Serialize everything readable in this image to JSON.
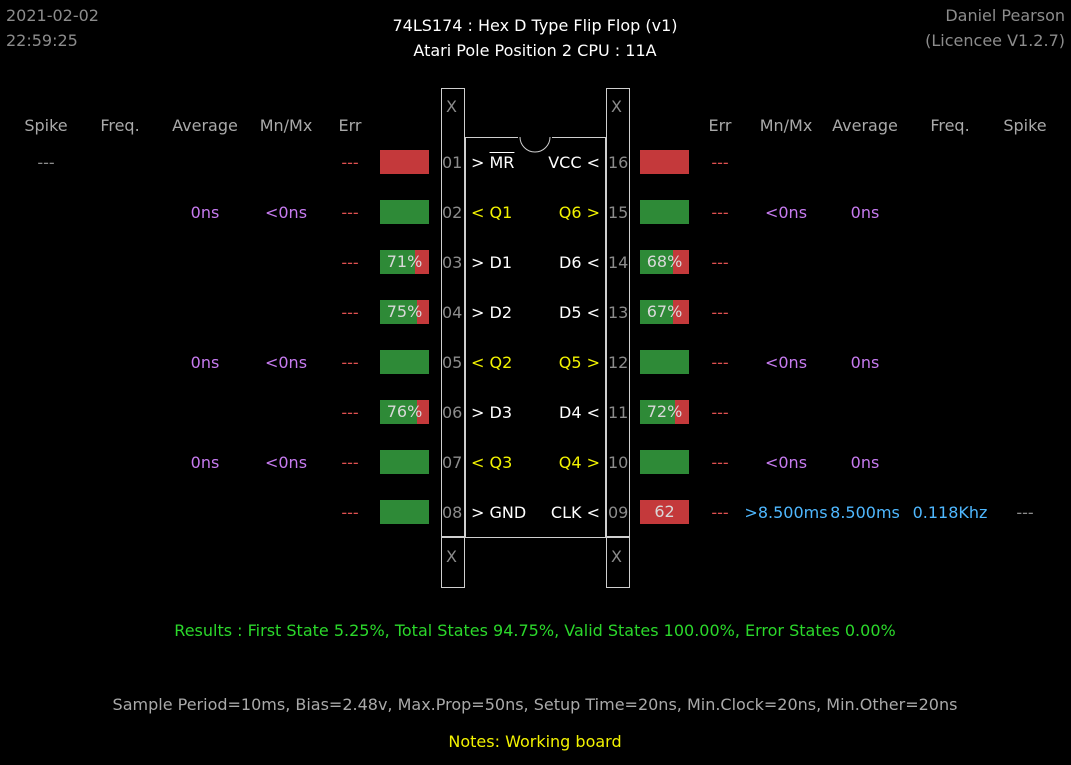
{
  "header": {
    "date": "2021-02-02",
    "time": "22:59:25",
    "title_line1": "74LS174  :  Hex D Type Flip Flop (v1)",
    "title_line2": "Atari Pole Position 2 CPU : 11A",
    "user": "Daniel Pearson",
    "licence": "(Licencee V1.2.7)"
  },
  "columns": {
    "left": [
      "Spike",
      "Freq.",
      "Average",
      "Mn/Mx",
      "Err"
    ],
    "right": [
      "Err",
      "Mn/Mx",
      "Average",
      "Freq.",
      "Spike"
    ]
  },
  "chip": {
    "notch_x": "X",
    "left_pins": [
      {
        "num": "01",
        "dir": ">",
        "name": "MR",
        "overline": true,
        "color": "white",
        "err": "---",
        "mnmx": "",
        "avg": "",
        "freq": "",
        "spike": "---",
        "box_label": "",
        "box_green_pct": 0
      },
      {
        "num": "02",
        "dir": "<",
        "name": "Q1",
        "color": "yellow",
        "err": "---",
        "mnmx": "<0ns",
        "avg": "0ns",
        "freq": "",
        "spike": "",
        "box_label": "",
        "box_green_pct": 100
      },
      {
        "num": "03",
        "dir": ">",
        "name": "D1",
        "color": "white",
        "err": "---",
        "mnmx": "",
        "avg": "",
        "freq": "",
        "spike": "",
        "box_label": "71%",
        "box_green_pct": 71
      },
      {
        "num": "04",
        "dir": ">",
        "name": "D2",
        "color": "white",
        "err": "---",
        "mnmx": "",
        "avg": "",
        "freq": "",
        "spike": "",
        "box_label": "75%",
        "box_green_pct": 75
      },
      {
        "num": "05",
        "dir": "<",
        "name": "Q2",
        "color": "yellow",
        "err": "---",
        "mnmx": "<0ns",
        "avg": "0ns",
        "freq": "",
        "spike": "",
        "box_label": "",
        "box_green_pct": 100
      },
      {
        "num": "06",
        "dir": ">",
        "name": "D3",
        "color": "white",
        "err": "---",
        "mnmx": "",
        "avg": "",
        "freq": "",
        "spike": "",
        "box_label": "76%",
        "box_green_pct": 76
      },
      {
        "num": "07",
        "dir": "<",
        "name": "Q3",
        "color": "yellow",
        "err": "---",
        "mnmx": "<0ns",
        "avg": "0ns",
        "freq": "",
        "spike": "",
        "box_label": "",
        "box_green_pct": 100
      },
      {
        "num": "08",
        "dir": ">",
        "name": "GND",
        "color": "white",
        "err": "---",
        "mnmx": "",
        "avg": "",
        "freq": "",
        "spike": "",
        "box_label": "",
        "box_green_pct": 100
      }
    ],
    "right_pins": [
      {
        "num": "16",
        "dir": "<",
        "name": "VCC",
        "color": "white",
        "err": "---",
        "mnmx": "",
        "avg": "",
        "freq": "",
        "spike": "",
        "box_label": "",
        "box_green_pct": 0
      },
      {
        "num": "15",
        "dir": ">",
        "name": "Q6",
        "color": "yellow",
        "err": "---",
        "mnmx": "<0ns",
        "avg": "0ns",
        "freq": "",
        "spike": "",
        "box_label": "",
        "box_green_pct": 100
      },
      {
        "num": "14",
        "dir": "<",
        "name": "D6",
        "color": "white",
        "err": "---",
        "mnmx": "",
        "avg": "",
        "freq": "",
        "spike": "",
        "box_label": "68%",
        "box_green_pct": 68
      },
      {
        "num": "13",
        "dir": "<",
        "name": "D5",
        "color": "white",
        "err": "---",
        "mnmx": "",
        "avg": "",
        "freq": "",
        "spike": "",
        "box_label": "67%",
        "box_green_pct": 67
      },
      {
        "num": "12",
        "dir": ">",
        "name": "Q5",
        "color": "yellow",
        "err": "---",
        "mnmx": "<0ns",
        "avg": "0ns",
        "freq": "",
        "spike": "",
        "box_label": "",
        "box_green_pct": 100
      },
      {
        "num": "11",
        "dir": "<",
        "name": "D4",
        "color": "white",
        "err": "---",
        "mnmx": "",
        "avg": "",
        "freq": "",
        "spike": "",
        "box_label": "72%",
        "box_green_pct": 72
      },
      {
        "num": "10",
        "dir": ">",
        "name": "Q4",
        "color": "yellow",
        "err": "---",
        "mnmx": "<0ns",
        "avg": "0ns",
        "freq": "",
        "spike": "",
        "box_label": "",
        "box_green_pct": 100
      },
      {
        "num": "09",
        "dir": "<",
        "name": "CLK",
        "color": "white",
        "err": "---",
        "mnmx": ">8.500ms",
        "avg": "8.500ms",
        "freq": "0.118Khz",
        "spike": "---",
        "box_label": "62",
        "box_green_pct": 0
      }
    ]
  },
  "results": "Results  :  First State 5.25%,  Total States 94.75%,  Valid States 100.00%,  Error States 0.00%",
  "settings": "Sample Period=10ms,  Bias=2.48v,  Max.Prop=50ns,  Setup Time=20ns,  Min.Clock=20ns,  Min.Other=20ns",
  "notes": "Notes:  Working board",
  "colors": {
    "box_green": "#2e8a37",
    "box_red": "#c4393b",
    "label_purple": "#c77bf0",
    "label_cyan": "#4fb8ff",
    "err_red": "#e05050",
    "pin_yellow": "#f3f300",
    "results_green": "#2bd82b"
  }
}
